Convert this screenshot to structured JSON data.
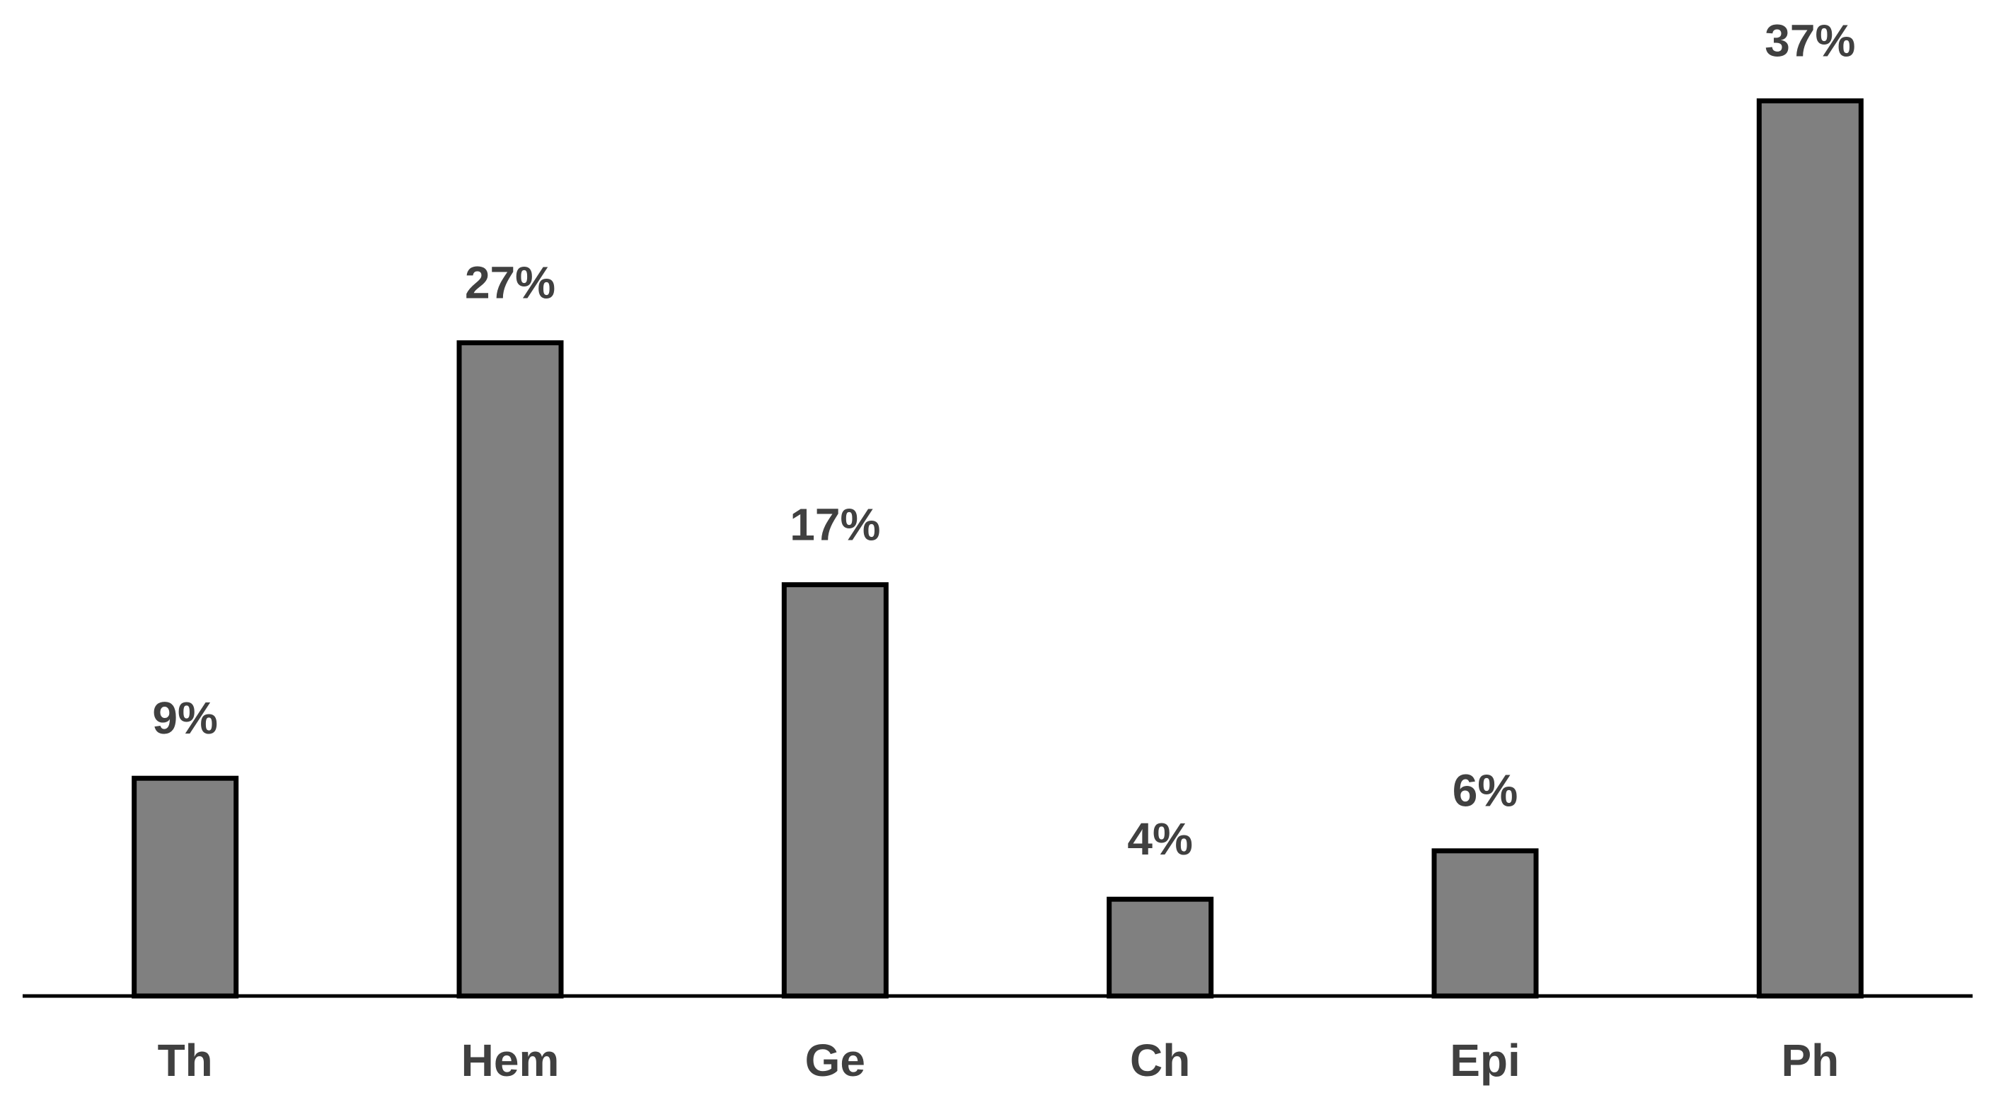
{
  "chart_data": {
    "type": "bar",
    "categories": [
      "Th",
      "Hem",
      "Ge",
      "Ch",
      "Epi",
      "Ph"
    ],
    "values": [
      9,
      27,
      17,
      4,
      6,
      37
    ],
    "value_labels": [
      "9%",
      "27%",
      "17%",
      "4%",
      "6%",
      "37%"
    ],
    "color": "#808080",
    "ylim": [
      0,
      40
    ]
  }
}
